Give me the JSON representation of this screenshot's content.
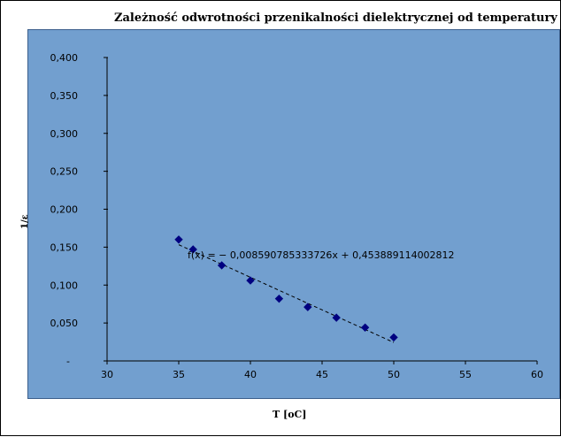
{
  "chart_data": {
    "type": "scatter",
    "title": "Zależność odwrotności przenikalności dielektrycznej od temperatury",
    "xlabel": "T [oC]",
    "ylabel": "1/ε",
    "xlim": [
      30,
      60
    ],
    "ylim": [
      0,
      0.4
    ],
    "x_ticks": [
      "30",
      "35",
      "40",
      "45",
      "50",
      "55",
      "60"
    ],
    "y_ticks": [
      "-",
      "0,050",
      "0,100",
      "0,150",
      "0,200",
      "0,250",
      "0,300",
      "0,350",
      "0,400"
    ],
    "grid": false,
    "legend": "none",
    "series": [
      {
        "x": [
          35,
          36,
          38,
          40,
          42,
          44,
          46,
          48,
          50
        ],
        "y": [
          0.16,
          0.147,
          0.126,
          0.106,
          0.082,
          0.071,
          0.057,
          0.044,
          0.031
        ],
        "marker": "diamond",
        "color": "#000080"
      }
    ],
    "trendline": {
      "slope": -0.008590785333726,
      "intercept": 0.453889114002812,
      "x_range": [
        35,
        50
      ],
      "style": "dashed",
      "label": "f(x) = − 0,008590785333726x + 0,453889114002812"
    },
    "colors": {
      "plot_background": "#729fcf",
      "marker": "#000080",
      "axis": "#000000"
    }
  }
}
